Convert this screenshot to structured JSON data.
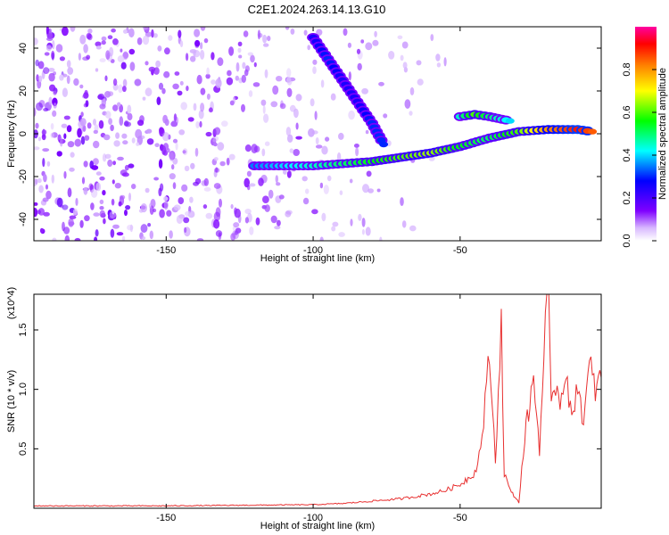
{
  "figure": {
    "title": "C2E1.2024.263.14.13.G10"
  },
  "chart_data": [
    {
      "type": "heatmap",
      "xlabel": "Height of straight line (km)",
      "ylabel": "Frequency (Hz)",
      "xlim": [
        -195,
        -2
      ],
      "ylim": [
        -50,
        50
      ],
      "xticks": [
        -150,
        -100,
        -50
      ],
      "yticks": [
        -40,
        -20,
        0,
        20,
        40
      ],
      "colorbar": {
        "label": "Normalized spectral amplitude",
        "range": [
          0,
          1
        ],
        "ticks": [
          "0.0",
          "0.2",
          "0.4",
          "0.6",
          "0.8"
        ],
        "colors": [
          "#ffffff",
          "#7f00ff",
          "#0000ff",
          "#00ffff",
          "#00ff00",
          "#ffff00",
          "#ff8000",
          "#ff0000",
          "#ff00a0"
        ]
      },
      "trace_points": [
        {
          "x": -120,
          "y": -15,
          "v": 0.35
        },
        {
          "x": -110,
          "y": -15,
          "v": 0.4
        },
        {
          "x": -100,
          "y": -15,
          "v": 0.45
        },
        {
          "x": -90,
          "y": -14,
          "v": 0.5
        },
        {
          "x": -80,
          "y": -13,
          "v": 0.55
        },
        {
          "x": -70,
          "y": -11,
          "v": 0.6
        },
        {
          "x": -60,
          "y": -9,
          "v": 0.65
        },
        {
          "x": -50,
          "y": -6,
          "v": 0.55
        },
        {
          "x": -40,
          "y": -2,
          "v": 0.5
        },
        {
          "x": -30,
          "y": 1,
          "v": 0.6
        },
        {
          "x": -20,
          "y": 2,
          "v": 0.8
        },
        {
          "x": -10,
          "y": 2,
          "v": 0.9
        },
        {
          "x": -5,
          "y": 1,
          "v": 0.85
        }
      ],
      "branch_upper": [
        {
          "x": -50,
          "y": 8,
          "v": 0.45
        },
        {
          "x": -45,
          "y": 9,
          "v": 0.6
        },
        {
          "x": -40,
          "y": 8,
          "v": 0.5
        },
        {
          "x": -33,
          "y": 6,
          "v": 0.4
        }
      ],
      "branch_diagonal": [
        {
          "x": -100,
          "y": 45,
          "v": 0.25
        },
        {
          "x": -95,
          "y": 35,
          "v": 0.3
        },
        {
          "x": -90,
          "y": 25,
          "v": 0.25
        },
        {
          "x": -85,
          "y": 15,
          "v": 0.25
        },
        {
          "x": -80,
          "y": 5,
          "v": 0.3
        },
        {
          "x": -76,
          "y": -5,
          "v": 0.3
        }
      ]
    },
    {
      "type": "line",
      "xlabel": "Height of straight line (km)",
      "ylabel": "SNR (10 * v/v)",
      "y_multiplier": "(x10^4)",
      "xlim": [
        -195,
        -2
      ],
      "ylim": [
        0,
        1.8
      ],
      "xticks": [
        -150,
        -100,
        -50
      ],
      "yticks": [
        0.5,
        1.0,
        1.5
      ],
      "series": [
        {
          "color": "#e83030",
          "x": [
            -195,
            -150,
            -100,
            -90,
            -80,
            -70,
            -60,
            -55,
            -50,
            -45,
            -43,
            -41,
            -40,
            -38,
            -36,
            -35,
            -33,
            -30,
            -28,
            -25,
            -23,
            -21,
            -20,
            -19,
            -18,
            -16,
            -14,
            -12,
            -10,
            -8,
            -6,
            -4,
            -2
          ],
          "y": [
            0.02,
            0.02,
            0.03,
            0.04,
            0.06,
            0.08,
            0.12,
            0.15,
            0.2,
            0.3,
            0.5,
            1.0,
            1.3,
            0.4,
            1.55,
            0.3,
            0.15,
            0.05,
            0.6,
            1.1,
            0.5,
            1.5,
            1.8,
            0.8,
            1.1,
            0.9,
            1.2,
            0.7,
            1.1,
            0.7,
            1.2,
            1.0,
            1.1
          ]
        }
      ]
    }
  ]
}
